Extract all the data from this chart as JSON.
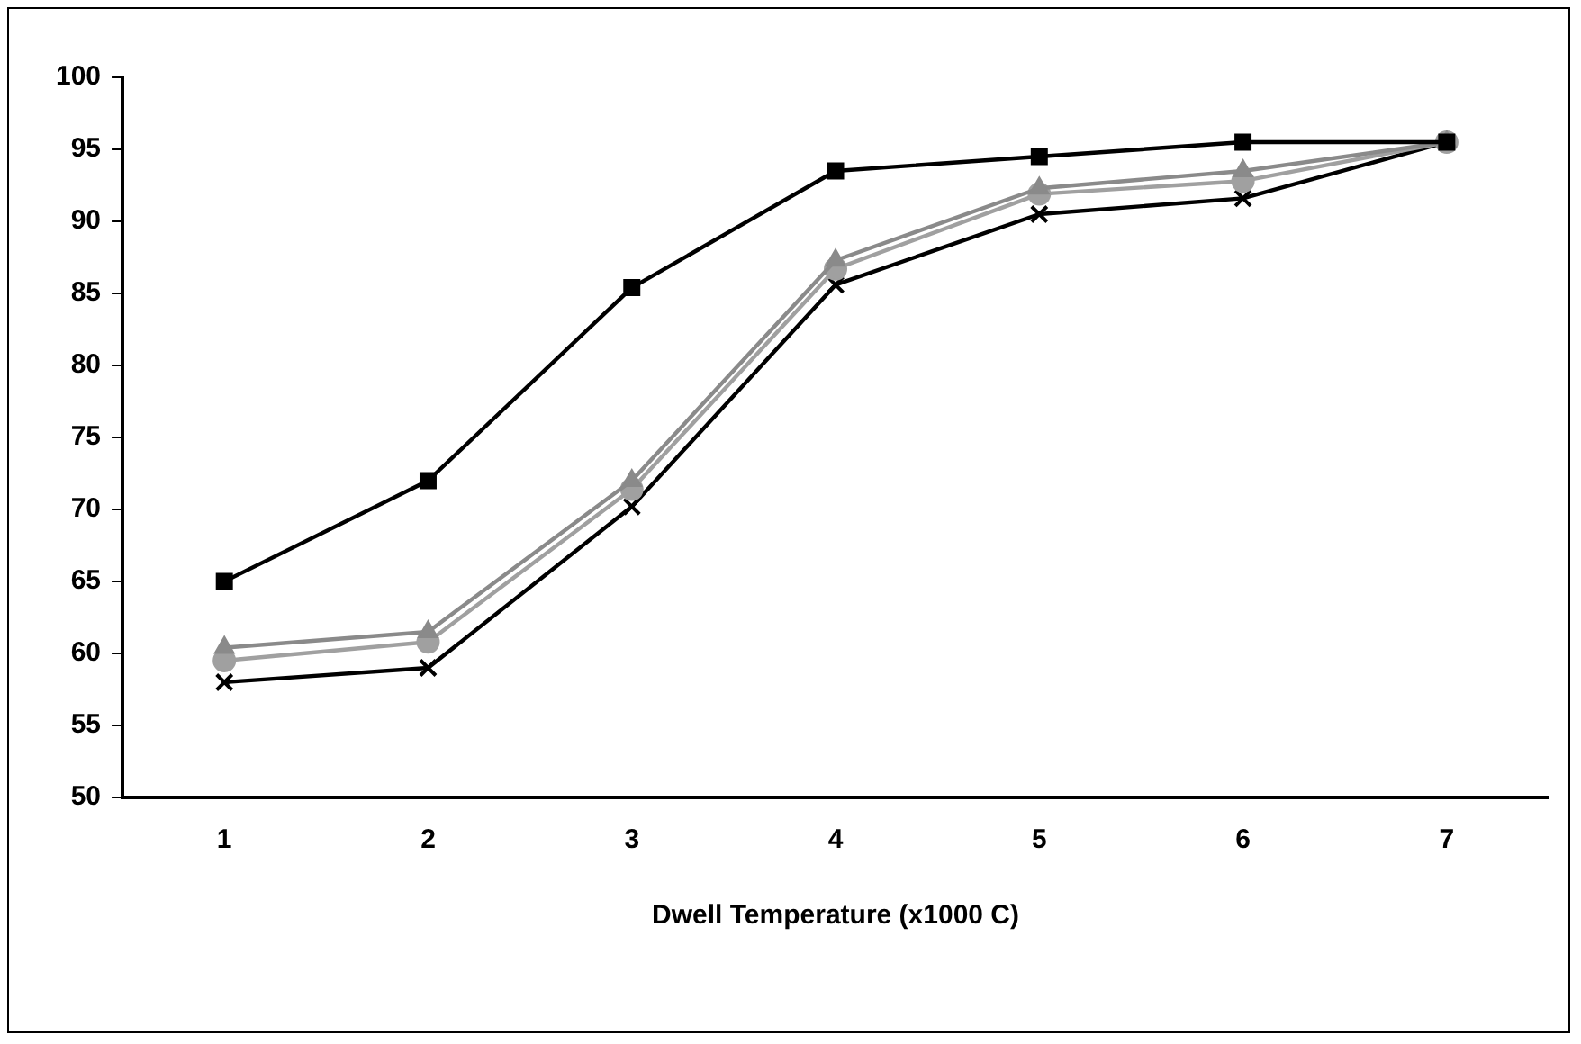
{
  "chart_data": {
    "type": "line",
    "xlabel": "Dwell Temperature (x1000 C)",
    "categories": [
      "1",
      "2",
      "3",
      "4",
      "5",
      "6",
      "7"
    ],
    "ylim": [
      50,
      100
    ],
    "yticks": [
      50,
      55,
      60,
      65,
      70,
      75,
      80,
      85,
      90,
      95,
      100
    ],
    "grid": false,
    "legend": false,
    "line_style": "solid",
    "series": [
      {
        "color": "#000000",
        "marker": "square",
        "values": [
          65,
          72,
          85.4,
          93.5,
          94.5,
          95.5,
          95.5
        ]
      },
      {
        "color": "#8a8a8a",
        "marker": "triangle",
        "values": [
          60.4,
          61.5,
          72,
          87.3,
          92.3,
          93.5,
          95.5
        ]
      },
      {
        "color": "#a0a0a0",
        "marker": "circle",
        "values": [
          59.5,
          60.8,
          71.4,
          86.7,
          91.9,
          92.8,
          95.5
        ]
      },
      {
        "color": "#000000",
        "marker": "cross",
        "values": [
          58,
          59,
          70.2,
          85.6,
          90.5,
          91.6,
          95.5
        ]
      }
    ]
  }
}
